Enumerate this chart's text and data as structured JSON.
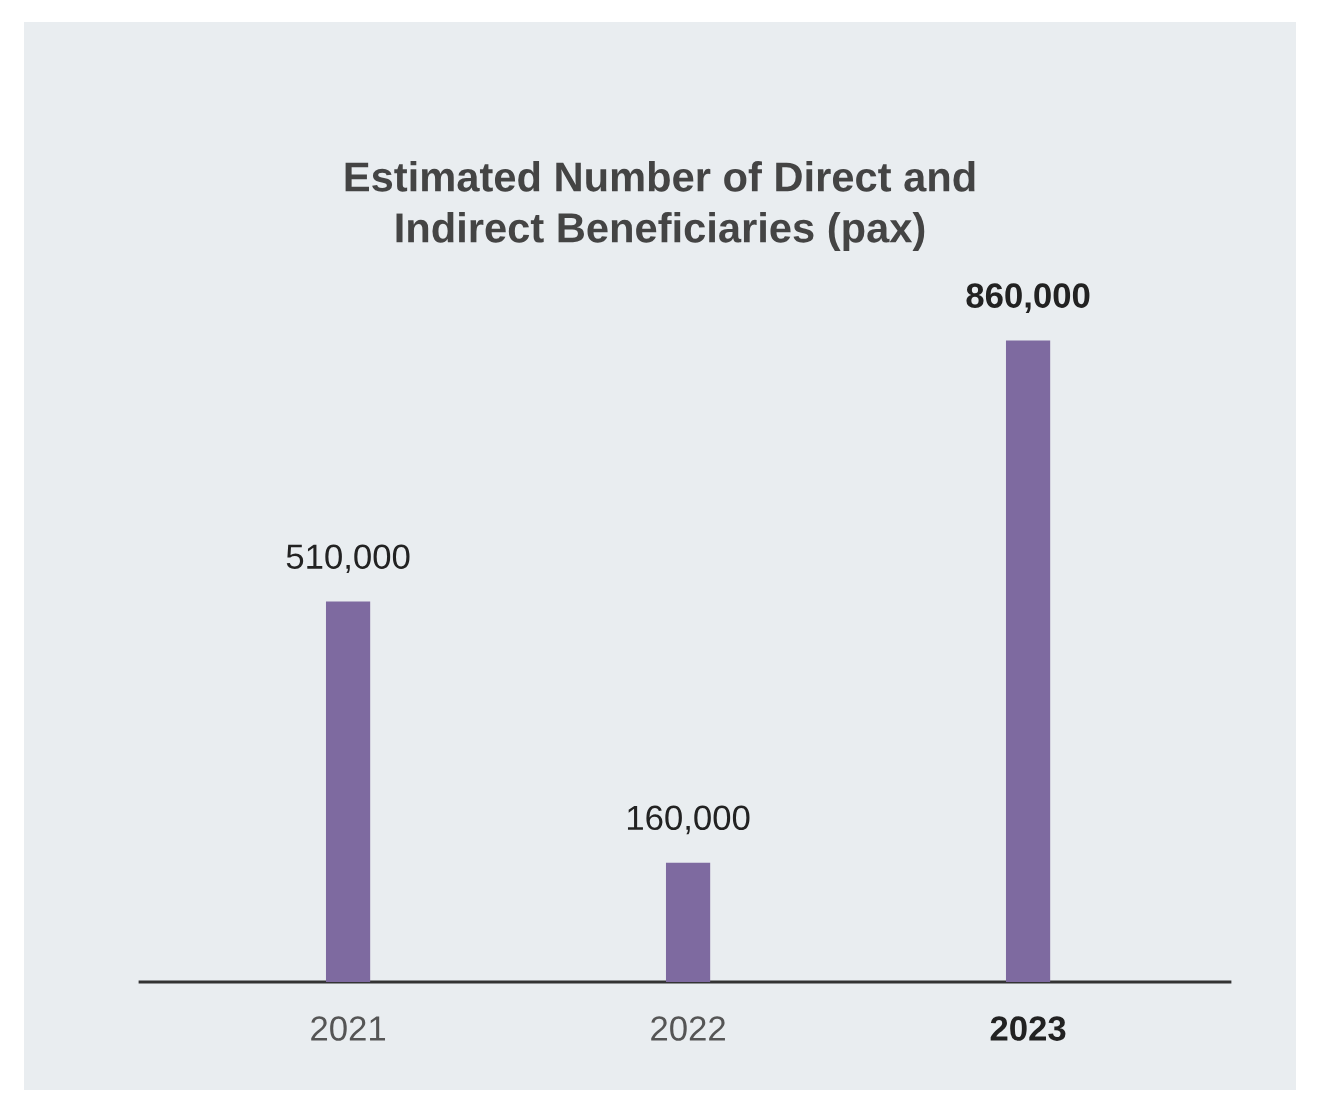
{
  "chart_data": {
    "type": "bar",
    "title": "Estimated Number of Direct and\nIndirect Beneficiaries (pax)",
    "categories": [
      "2021",
      "2022",
      "2023"
    ],
    "values": [
      510000,
      160000,
      860000
    ],
    "color": "#7e6aa0",
    "value_labels": [
      "510,000",
      "160,000",
      "860,000"
    ],
    "grid": false,
    "legend": false
  }
}
